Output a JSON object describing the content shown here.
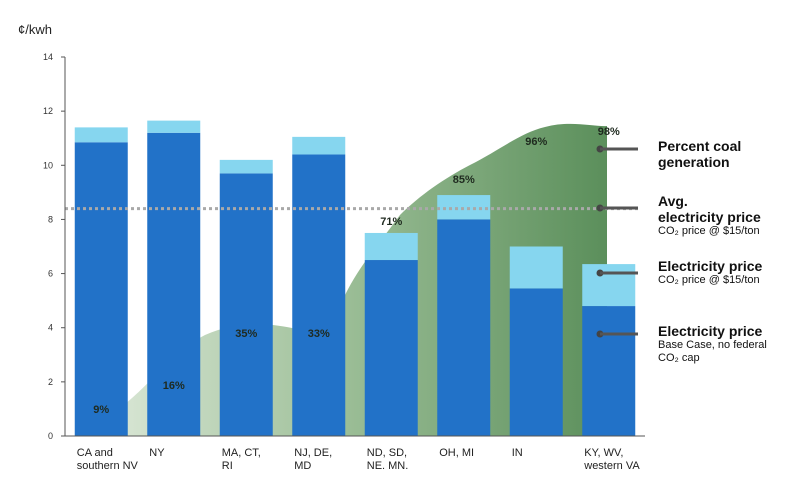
{
  "chart_data": {
    "type": "bar",
    "ylabel": "¢/kwh",
    "ylim": [
      0,
      14
    ],
    "yticks": [
      0,
      2,
      4,
      6,
      8,
      10,
      12,
      14
    ],
    "categories": [
      "CA and\nsouthern NV",
      "NY",
      "MA, CT,\nRI",
      "NJ, DE,\nMD",
      "ND, SD,\nNE. MN.",
      "OH, MI",
      "IN",
      "KY, WV,\nwestern VA"
    ],
    "series": [
      {
        "name": "Electricity price",
        "role": "base",
        "color": "#2272c8",
        "values": [
          10.85,
          11.2,
          9.7,
          10.4,
          6.5,
          8.0,
          5.45,
          4.8
        ]
      },
      {
        "name": "Electricity price",
        "role": "co2_increment",
        "color": "#86d6ef",
        "values": [
          0.55,
          0.45,
          0.5,
          0.65,
          1.0,
          0.9,
          1.55,
          1.55
        ]
      }
    ],
    "coal_share": {
      "color": "#5b8f5b",
      "labels": [
        "9%",
        "16%",
        "35%",
        "33%",
        "71%",
        "85%",
        "96%",
        "98%"
      ]
    },
    "avg_price": {
      "value": 8.4,
      "color": "#a9a9a9"
    },
    "legend": [
      {
        "title": "Percent coal\ngeneration",
        "sub": "",
        "swatch": "#4e8450"
      },
      {
        "title": "Avg.\nelectricity price",
        "sub": "CO₂ price @ $15/ton",
        "swatch": "#a9a9a9"
      },
      {
        "title": "Electricity price",
        "sub": "CO₂ price @ $15/ton",
        "swatch": "#86d6ef"
      },
      {
        "title": "Electricity price",
        "sub": "Base Case, no federal\nCO₂ cap",
        "swatch": "#2272c8"
      }
    ]
  }
}
